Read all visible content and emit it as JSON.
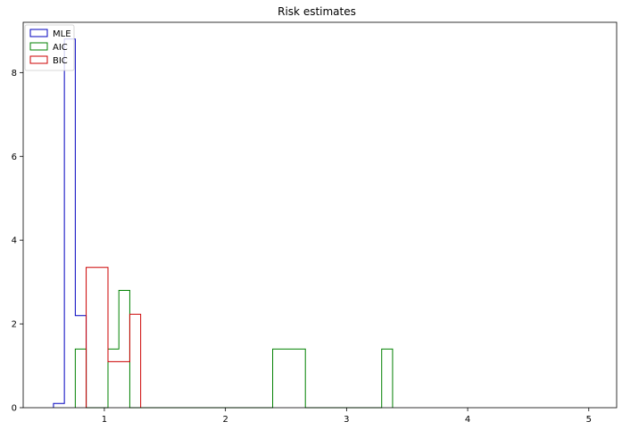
{
  "chart_data": {
    "type": "bar",
    "histtype": "step",
    "title": "Risk estimates",
    "xlabel": "",
    "ylabel": "",
    "xlim": [
      0.33,
      5.23
    ],
    "ylim": [
      0,
      9.2
    ],
    "xticks": [
      1,
      2,
      3,
      4,
      5
    ],
    "yticks": [
      0,
      2,
      4,
      6,
      8
    ],
    "legend_position": "top-left",
    "grid": false,
    "series": [
      {
        "name": "MLE",
        "color": "#0000bf",
        "bins": [
          {
            "x0": 0.58,
            "x1": 0.67,
            "y": 0.1
          },
          {
            "x0": 0.67,
            "x1": 0.76,
            "y": 8.8
          },
          {
            "x0": 0.76,
            "x1": 0.85,
            "y": 2.2
          }
        ]
      },
      {
        "name": "AIC",
        "color": "#008000",
        "bins": [
          {
            "x0": 0.76,
            "x1": 0.85,
            "y": 1.4
          },
          {
            "x0": 0.85,
            "x1": 0.94,
            "y": 0
          },
          {
            "x0": 0.94,
            "x1": 1.03,
            "y": 0
          },
          {
            "x0": 1.03,
            "x1": 1.12,
            "y": 1.4
          },
          {
            "x0": 1.12,
            "x1": 1.21,
            "y": 2.8
          },
          {
            "x0": 1.21,
            "x1": 2.39,
            "y": 0
          },
          {
            "x0": 2.39,
            "x1": 2.66,
            "y": 1.4
          },
          {
            "x0": 2.66,
            "x1": 3.29,
            "y": 0
          },
          {
            "x0": 3.29,
            "x1": 3.38,
            "y": 1.4
          }
        ]
      },
      {
        "name": "BIC",
        "color": "#cc0000",
        "bins": [
          {
            "x0": 0.85,
            "x1": 1.03,
            "y": 3.35
          },
          {
            "x0": 1.03,
            "x1": 1.21,
            "y": 1.1
          },
          {
            "x0": 1.21,
            "x1": 1.3,
            "y": 2.23
          }
        ]
      }
    ]
  }
}
